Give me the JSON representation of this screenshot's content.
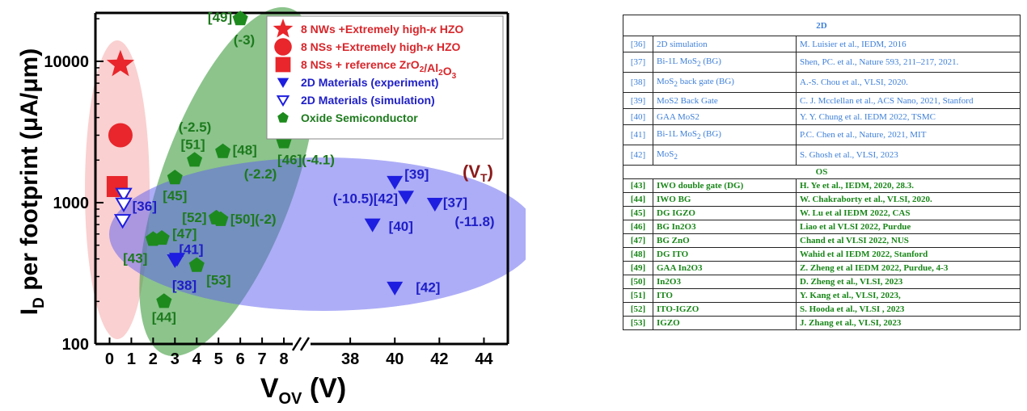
{
  "chart_data": {
    "type": "scatter",
    "xlabel": "V",
    "xlabel_sub": "OV",
    "xlabel_unit": " (V)",
    "ylabel": "I",
    "ylabel_sub": "D",
    "ylabel_rest": " per footprint (μA/μm)",
    "y_scale": "log",
    "ylim": [
      100,
      22000
    ],
    "x_segments": [
      {
        "range": [
          -0.5,
          9.0
        ],
        "ticks": [
          0,
          1,
          2,
          3,
          4,
          5,
          6,
          7,
          8
        ]
      },
      {
        "range": [
          36.0,
          45.0
        ],
        "ticks": [
          38,
          40,
          42,
          44
        ]
      }
    ],
    "y_ticks": [
      100,
      1000,
      10000
    ],
    "y_tick_labels": [
      "100",
      "1000",
      "10000"
    ],
    "vt_annotation": "(V",
    "vt_annotation_sub": "T",
    "vt_annotation_end": ")",
    "series": [
      {
        "name": "8 NWs +Extremely high-κ HZO",
        "name_parts": [
          "8 NWs +Extremely high-",
          "κ",
          " HZO"
        ],
        "marker": "star",
        "color": "#e8262b",
        "label_color": "#d8262b",
        "points": [
          {
            "x": 0.5,
            "y": 9500
          }
        ]
      },
      {
        "name": "8 NSs +Extremely high-κ HZO",
        "name_parts": [
          "8 NSs +Extremely high-",
          "κ",
          " HZO"
        ],
        "marker": "circle",
        "color": "#e8262b",
        "label_color": "#d8262b",
        "points": [
          {
            "x": 0.5,
            "y": 3000
          }
        ]
      },
      {
        "name": "8 NSs + reference ZrO2/Al2O3",
        "name_parts": [
          "8 NSs + reference ZrO",
          "2",
          "/Al",
          "2",
          "O",
          "3"
        ],
        "marker": "square",
        "color": "#e8262b",
        "label_color": "#d8262b",
        "points": [
          {
            "x": 0.35,
            "y": 1300
          }
        ]
      },
      {
        "name": "2D Materials (experiment)",
        "marker": "triangle-down",
        "color": "#1e1ee0",
        "label_color": "#1e1ec8",
        "points": [
          {
            "x": 3.0,
            "y": 390,
            "label": "[41]"
          },
          {
            "x": 3.1,
            "y": 400
          },
          {
            "x": 39.0,
            "y": 700,
            "label": "[40]"
          },
          {
            "x": 40.0,
            "y": 1400,
            "label": "[39]"
          },
          {
            "x": 40.5,
            "y": 1100,
            "label": "(-10.5)[42]"
          },
          {
            "x": 41.8,
            "y": 980,
            "label": "[37]"
          },
          {
            "x": 40.0,
            "y": 250,
            "label": "[42]"
          }
        ]
      },
      {
        "name": "2D Materials (simulation)",
        "marker": "triangle-down-open",
        "color": "#1e1ee0",
        "label_color": "#1e1ec8",
        "points": [
          {
            "x": 0.65,
            "y": 1150
          },
          {
            "x": 0.65,
            "y": 980
          },
          {
            "x": 0.6,
            "y": 750,
            "label": "[36]"
          }
        ]
      },
      {
        "name": "Oxide Semiconductor",
        "marker": "pentagon",
        "color": "#1d8a1d",
        "label_color": "#1d7a1d",
        "points": [
          {
            "x": 6.0,
            "y": 20000,
            "label": "[49]"
          },
          {
            "x": 3.9,
            "y": 2000,
            "label": "[51]"
          },
          {
            "x": 5.2,
            "y": 2300,
            "label": "[48]"
          },
          {
            "x": 8.0,
            "y": 2700,
            "label": "[46](-4.1)"
          },
          {
            "x": 3.0,
            "y": 1500,
            "label": "[45]"
          },
          {
            "x": 4.9,
            "y": 780,
            "label": "[52]"
          },
          {
            "x": 5.1,
            "y": 760,
            "label": "[50](-2)"
          },
          {
            "x": 2.0,
            "y": 550,
            "label": "[43]"
          },
          {
            "x": 2.4,
            "y": 560,
            "label": "[47]"
          },
          {
            "x": 4.0,
            "y": 360,
            "label": "[53]"
          },
          {
            "x": 2.5,
            "y": 200,
            "label": "[44]"
          }
        ]
      }
    ],
    "extra_labels": [
      {
        "text": "(-3)",
        "color": "#1d7a1d"
      },
      {
        "text": "(-2.5)",
        "color": "#1d7a1d"
      },
      {
        "text": "(-2.2)",
        "color": "#1d7a1d"
      },
      {
        "text": "[38]",
        "color": "#1e1ec8"
      },
      {
        "text": "(-11.8)",
        "color": "#1e1ec8"
      }
    ],
    "regions": [
      {
        "name": "8-nanosheet-region",
        "color": "#f07878"
      },
      {
        "name": "oxide-semiconductor-region",
        "color": "#3f9d3f"
      },
      {
        "name": "2d-materials-region",
        "color": "#5b5bf0"
      }
    ]
  },
  "table": {
    "header_2d": "2D",
    "rows_2d": [
      {
        "num": "[36]",
        "parts": [
          "2D simulation"
        ],
        "ref": "M. Luisier et al., IEDM, 2016"
      },
      {
        "num": "[37]",
        "parts": [
          "Bi-1L MoS",
          "2",
          " (BG)"
        ],
        "ref": "Shen, PC. et al., Nature 593, 211–217, 2021."
      },
      {
        "num": "[38]",
        "parts": [
          "MoS",
          "2",
          " back gate (BG)"
        ],
        "ref": "A.-S. Chou et al., VLSI, 2020."
      },
      {
        "num": "[39]",
        "parts": [
          "MoS2 Back Gate"
        ],
        "ref": "C. J. Mcclellan et al., ACS Nano, 2021, Stanford"
      },
      {
        "num": "[40]",
        "parts": [
          "GAA MoS2"
        ],
        "ref": "Y. Y. Chung et al. IEDM 2022, TSMC"
      },
      {
        "num": "[41]",
        "parts": [
          "Bi-1L MoS",
          "2",
          " (BG)"
        ],
        "ref": "P.C. Chen et al., Nature, 2021, MIT"
      },
      {
        "num": "[42]",
        "parts": [
          "MoS",
          "2"
        ],
        "ref": "S. Ghosh et al., VLSI, 2023"
      }
    ],
    "header_os": "OS",
    "rows_os": [
      {
        "num": "[43]",
        "name": "IWO double gate (DG)",
        "ref": "H. Ye et al., IEDM, 2020, 28.3."
      },
      {
        "num": "[44]",
        "name": "IWO BG",
        "ref": "W. Chakraborty et al., VLSI, 2020."
      },
      {
        "num": "[45]",
        "name": "DG IGZO",
        "ref": "W. Lu et al IEDM 2022, CAS"
      },
      {
        "num": "[46]",
        "name": "BG In2O3",
        "ref": "Liao et al VLSI 2022, Purdue"
      },
      {
        "num": "[47]",
        "name": "BG ZnO",
        "ref": "Chand et al VLSI 2022, NUS"
      },
      {
        "num": "[48]",
        "name": "DG ITO",
        "ref": "Wahid et al IEDM 2022, Stanford"
      },
      {
        "num": "[49]",
        "name": "GAA In2O3",
        "ref": "Z. Zheng et al IEDM 2022, Purdue, 4-3"
      },
      {
        "num": "[50]",
        "name": "In2O3",
        "ref": "D. Zheng et al., VLSI, 2023"
      },
      {
        "num": "[51]",
        "name": "ITO",
        "ref": "Y. Kang et al., VLSI, 2023,"
      },
      {
        "num": "[52]",
        "name": "ITO-IGZO",
        "ref": "S. Hooda et al., VLSI , 2023"
      },
      {
        "num": "[53]",
        "name": "IGZO",
        "ref": "J. Zhang et al., VLSI, 2023"
      }
    ]
  }
}
